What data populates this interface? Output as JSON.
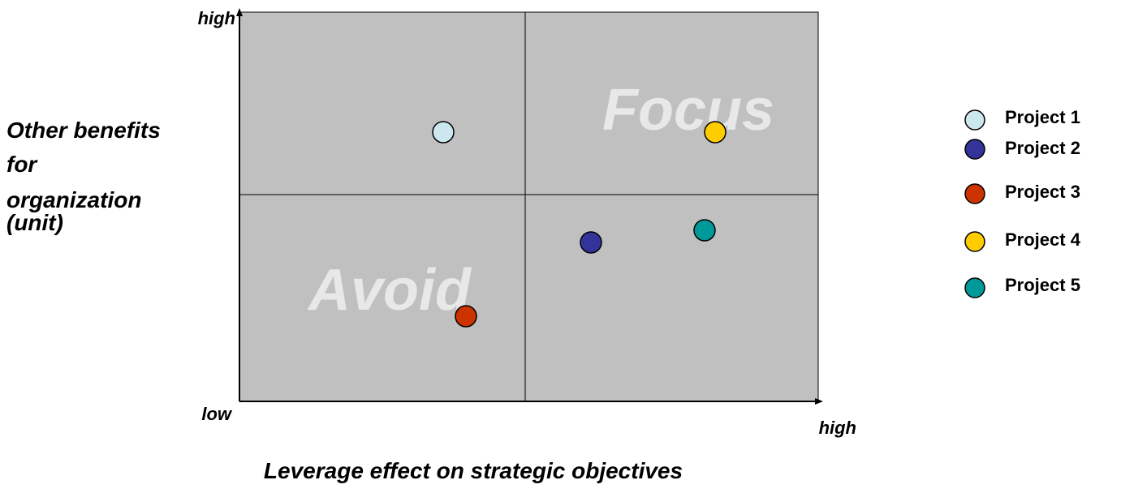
{
  "y_axis": {
    "high": "high",
    "label_lines": [
      "Other benefits",
      "for",
      "organization",
      "(unit)"
    ]
  },
  "x_axis": {
    "low": "low",
    "high": "high",
    "label": "Leverage effect on strategic objectives"
  },
  "quadrants": {
    "top_right": "Focus",
    "bottom_left": "Avoid"
  },
  "legend": [
    "Project 1",
    "Project 2",
    "Project 3",
    "Project 4",
    "Project 5"
  ]
}
